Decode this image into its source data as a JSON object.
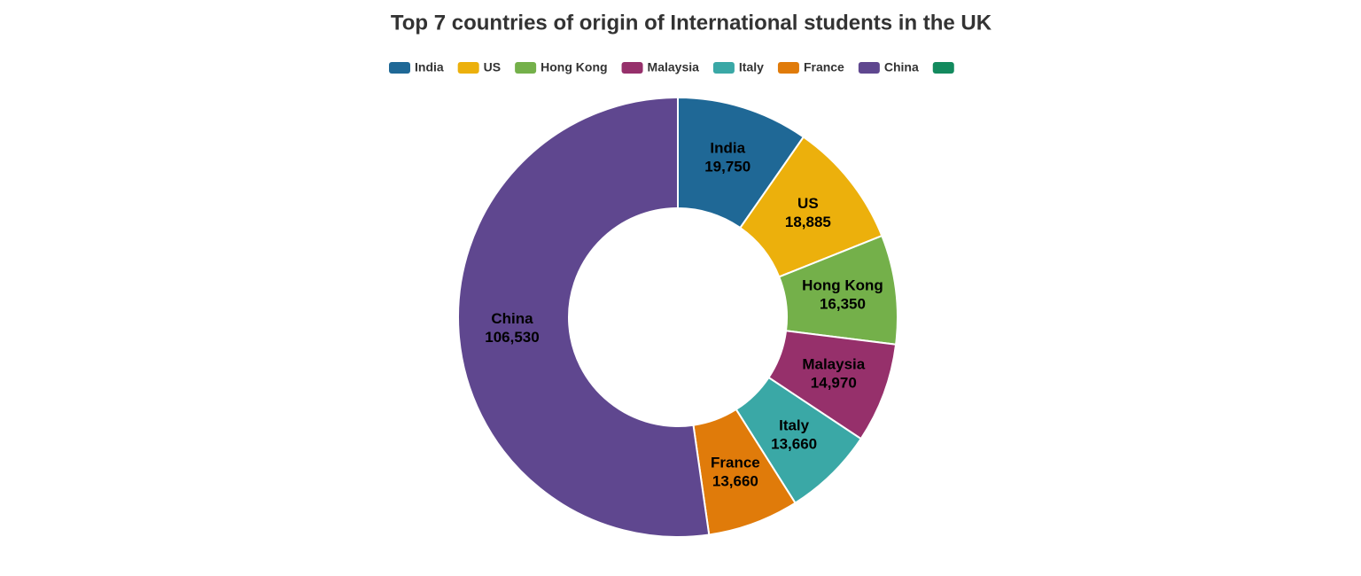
{
  "chart_data": {
    "type": "donut",
    "title": "Top 7 countries of origin of International students in the UK",
    "categories": [
      "India",
      "US",
      "Hong Kong",
      "Malaysia",
      "Italy",
      "France",
      "China",
      null
    ],
    "values": [
      19750,
      18885,
      16350,
      14970,
      13660,
      13660,
      106530,
      null
    ],
    "value_labels": [
      "19,750",
      "18,885",
      "16,350",
      "14,970",
      "13,660",
      "13,660",
      "106,530",
      null
    ],
    "colors": [
      "#1f6896",
      "#ecb00c",
      "#74b04a",
      "#96306b",
      "#3aa8a6",
      "#e07b0a",
      "#5f478f",
      "#138a5e"
    ],
    "legend": "top"
  }
}
